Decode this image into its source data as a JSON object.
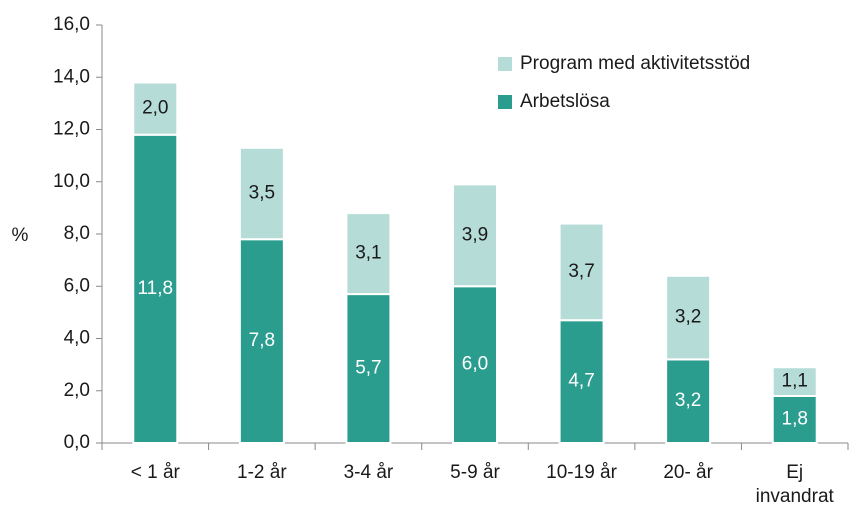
{
  "chart_data": {
    "type": "stacked_bar",
    "y_label": "%",
    "categories": [
      "< 1 år",
      "1-2 år",
      "3-4 år",
      "5-9 år",
      "10-19 år",
      "20- år",
      "Ej\ninvandrat"
    ],
    "series": [
      {
        "name": "Arbetslösa",
        "color": "#2a9d8f",
        "label_color": "#ffffff",
        "values": [
          11.8,
          7.8,
          5.7,
          6.0,
          4.7,
          3.2,
          1.8
        ],
        "value_labels": [
          "11,8",
          "7,8",
          "5,7",
          "6,0",
          "4,7",
          "3,2",
          "1,8"
        ]
      },
      {
        "name": "Program med aktivitetsstöd",
        "color": "#b5dcd6",
        "label_color": "#1a1a1a",
        "values": [
          2.0,
          3.5,
          3.1,
          3.9,
          3.7,
          3.2,
          1.1
        ],
        "value_labels": [
          "2,0",
          "3,5",
          "3,1",
          "3,9",
          "3,7",
          "3,2",
          "1,1"
        ]
      }
    ],
    "ylim": [
      0,
      16
    ],
    "yticks": [
      {
        "value": 0,
        "label": "0,0"
      },
      {
        "value": 2,
        "label": "2,0"
      },
      {
        "value": 4,
        "label": "4,0"
      },
      {
        "value": 6,
        "label": "6,0"
      },
      {
        "value": 8,
        "label": "8,0"
      },
      {
        "value": 10,
        "label": "10,0"
      },
      {
        "value": 12,
        "label": "12,0"
      },
      {
        "value": 14,
        "label": "14,0"
      },
      {
        "value": 16,
        "label": "16,0"
      }
    ],
    "legend": "upper right"
  }
}
